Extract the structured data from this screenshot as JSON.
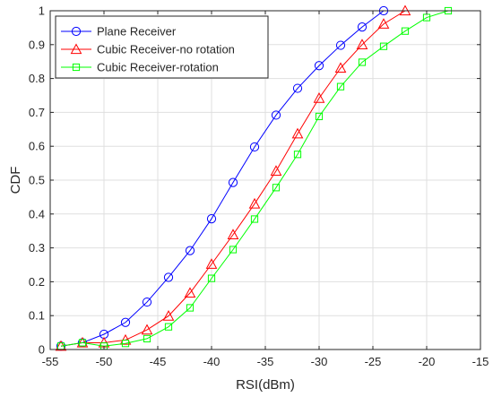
{
  "chart_data": {
    "type": "line",
    "title": "",
    "xlabel": "RSI(dBm)",
    "ylabel": "CDF",
    "xlim": [
      -55,
      -15
    ],
    "ylim": [
      0,
      1
    ],
    "xticks": [
      -55,
      -50,
      -45,
      -40,
      -35,
      -30,
      -25,
      -20,
      -15
    ],
    "yticks": [
      0,
      0.1,
      0.2,
      0.3,
      0.4,
      0.5,
      0.6,
      0.7,
      0.8,
      0.9,
      1
    ],
    "xtick_labels": [
      "-55",
      "-50",
      "-45",
      "-40",
      "-35",
      "-30",
      "-25",
      "-20",
      "-15"
    ],
    "ytick_labels": [
      "0",
      "0.1",
      "0.2",
      "0.3",
      "0.4",
      "0.5",
      "0.6",
      "0.7",
      "0.8",
      "0.9",
      "1"
    ],
    "grid": true,
    "legend_position": "top-left",
    "series": [
      {
        "name": "Plane Receiver",
        "color": "#0000ff",
        "marker": "circle",
        "points": [
          [
            -54,
            0.01
          ],
          [
            -52,
            0.02
          ],
          [
            -50,
            0.045
          ],
          [
            -48,
            0.08
          ],
          [
            -46,
            0.14
          ],
          [
            -44,
            0.213
          ],
          [
            -42,
            0.292
          ],
          [
            -40,
            0.386
          ],
          [
            -38,
            0.493
          ],
          [
            -36,
            0.598
          ],
          [
            -34,
            0.692
          ],
          [
            -32,
            0.771
          ],
          [
            -30,
            0.838
          ],
          [
            -28,
            0.898
          ],
          [
            -26,
            0.952
          ],
          [
            -24,
            1.0
          ]
        ]
      },
      {
        "name": "Cubic Receiver-no rotation",
        "color": "#ff0000",
        "marker": "triangle",
        "points": [
          [
            -54,
            0.01
          ],
          [
            -52,
            0.02
          ],
          [
            -50,
            0.02
          ],
          [
            -48,
            0.028
          ],
          [
            -46,
            0.058
          ],
          [
            -44,
            0.099
          ],
          [
            -42,
            0.167
          ],
          [
            -40,
            0.252
          ],
          [
            -38,
            0.339
          ],
          [
            -36,
            0.43
          ],
          [
            -34,
            0.527
          ],
          [
            -32,
            0.637
          ],
          [
            -30,
            0.742
          ],
          [
            -28,
            0.831
          ],
          [
            -26,
            0.9
          ],
          [
            -24,
            0.961
          ],
          [
            -22,
            1.0
          ]
        ]
      },
      {
        "name": "Cubic Receiver-rotation",
        "color": "#00ff00",
        "marker": "square",
        "points": [
          [
            -54,
            0.01
          ],
          [
            -52,
            0.02
          ],
          [
            -50,
            0.01
          ],
          [
            -48,
            0.018
          ],
          [
            -46,
            0.032
          ],
          [
            -44,
            0.067
          ],
          [
            -42,
            0.123
          ],
          [
            -40,
            0.21
          ],
          [
            -38,
            0.295
          ],
          [
            -36,
            0.385
          ],
          [
            -34,
            0.478
          ],
          [
            -32,
            0.576
          ],
          [
            -30,
            0.688
          ],
          [
            -28,
            0.776
          ],
          [
            -26,
            0.848
          ],
          [
            -24,
            0.895
          ],
          [
            -22,
            0.94
          ],
          [
            -20,
            0.98
          ],
          [
            -18,
            1.0
          ]
        ]
      }
    ]
  }
}
